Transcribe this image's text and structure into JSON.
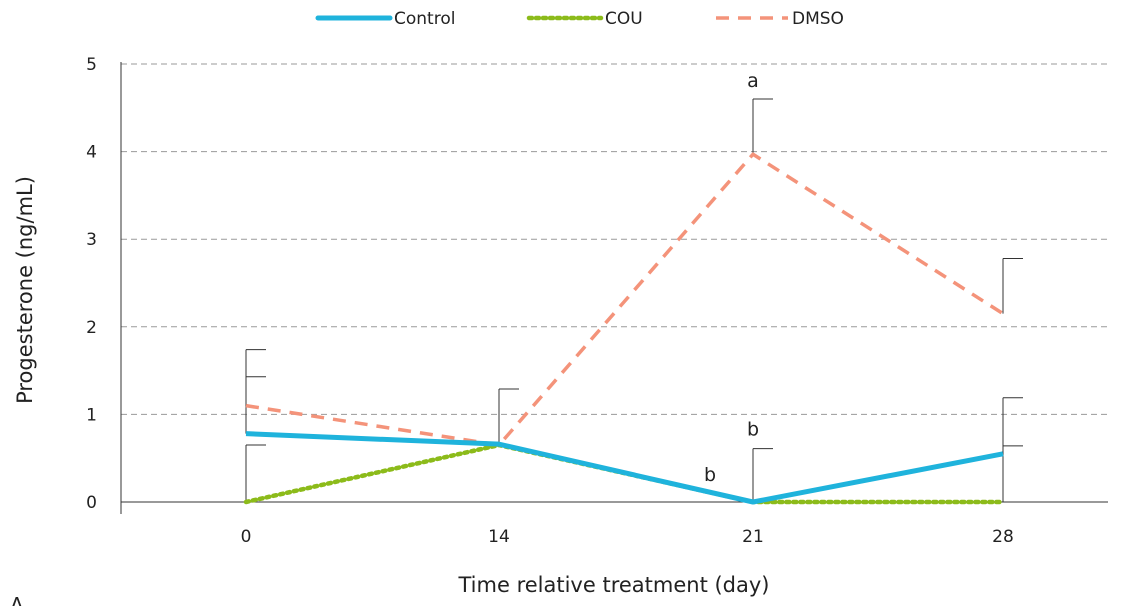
{
  "chart_data": {
    "type": "line",
    "xlabel": "Time relative treatment (day)",
    "ylabel": "Progesterone (ng/mL)",
    "categories": [
      "0",
      "14",
      "21",
      "28"
    ],
    "y_ticks": [
      "0",
      "1",
      "2",
      "3",
      "4",
      "5"
    ],
    "ylim": [
      0,
      5
    ],
    "grid": "horizontal dashed",
    "legend_position": "top",
    "series": [
      {
        "name": "Control",
        "values": [
          0.78,
          0.66,
          0.0,
          0.55
        ],
        "err_upper": [
          1.43,
          1.29,
          0.61,
          1.19
        ],
        "color": "#1fb3dc",
        "style": "solid"
      },
      {
        "name": "COU",
        "values": [
          0.0,
          0.65,
          0.0,
          0.0
        ],
        "err_upper": [
          0.65,
          0.65,
          0.0,
          0.64
        ],
        "color": "#8cbb1a",
        "style": "dotted"
      },
      {
        "name": "DMSO",
        "values": [
          1.1,
          0.65,
          3.97,
          2.15
        ],
        "err_upper": [
          1.74,
          0.65,
          4.6,
          2.78
        ],
        "color": "#f4937a",
        "style": "dashed"
      }
    ],
    "annotations": [
      {
        "text": "a",
        "x": "21",
        "y": 4.82
      },
      {
        "text": "b",
        "x": "21",
        "y": 0.84
      },
      {
        "text": "b",
        "x": "21",
        "y": 0.32,
        "x_shift": "left"
      }
    ],
    "panel_label": "A"
  }
}
